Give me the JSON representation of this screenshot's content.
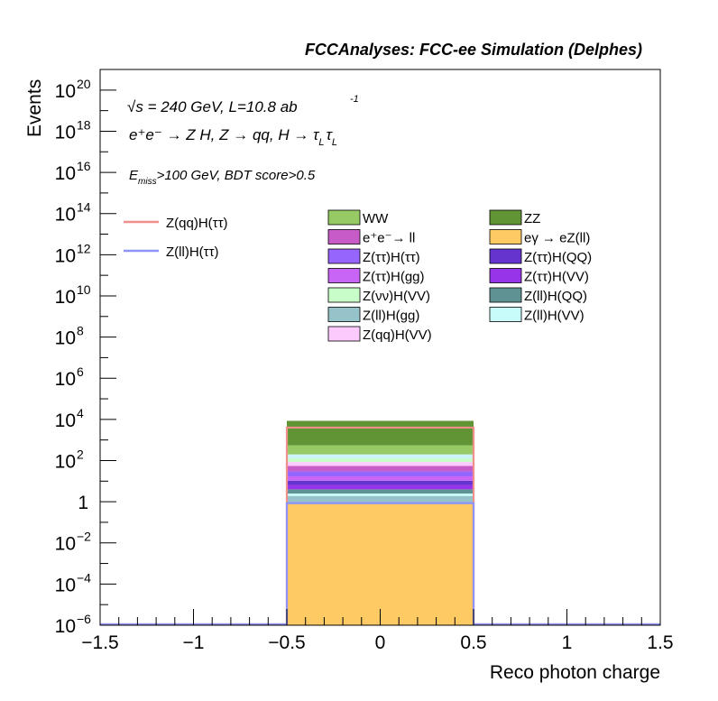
{
  "chart_data": {
    "type": "bar",
    "title": "FCCAnalyses: FCC-ee Simulation (Delphes)",
    "xlabel": "Reco photon charge",
    "ylabel": "Events",
    "xlim": [
      -1.5,
      1.5
    ],
    "ylim": [
      1e-06,
      1e+21
    ],
    "y_log_scale": true,
    "x_ticks": [
      {
        "value": -1.5,
        "label": "−1.5"
      },
      {
        "value": -1,
        "label": "−1"
      },
      {
        "value": -0.5,
        "label": "−0.5"
      },
      {
        "value": 0,
        "label": "0"
      },
      {
        "value": 0.5,
        "label": "0.5"
      },
      {
        "value": 1,
        "label": "1"
      },
      {
        "value": 1.5,
        "label": "1.5"
      }
    ],
    "y_ticks": [
      {
        "exp": -6,
        "base": "10",
        "sup": "−6"
      },
      {
        "exp": -4,
        "base": "10",
        "sup": "−4"
      },
      {
        "exp": -2,
        "base": "10",
        "sup": "−2"
      },
      {
        "exp": 0,
        "base": "1",
        "sup": ""
      },
      {
        "exp": 2,
        "base": "10",
        "sup": "2"
      },
      {
        "exp": 4,
        "base": "10",
        "sup": "4"
      },
      {
        "exp": 6,
        "base": "10",
        "sup": "6"
      },
      {
        "exp": 8,
        "base": "10",
        "sup": "8"
      },
      {
        "exp": 10,
        "base": "10",
        "sup": "10"
      },
      {
        "exp": 12,
        "base": "10",
        "sup": "12"
      },
      {
        "exp": 14,
        "base": "10",
        "sup": "14"
      },
      {
        "exp": 16,
        "base": "10",
        "sup": "16"
      },
      {
        "exp": 18,
        "base": "10",
        "sup": "18"
      },
      {
        "exp": 20,
        "base": "10",
        "sup": "20"
      }
    ],
    "bin": {
      "x_low": -0.5,
      "x_high": 0.5
    },
    "stack": [
      {
        "name": "eγ → eZ(ll)",
        "color": "#fdca63",
        "top": 0.85
      },
      {
        "name": "Z(ll)H(gg)",
        "color": "#96c3c9",
        "top": 1.9
      },
      {
        "name": "Z(ll)H(VV)",
        "color": "#c8fcfa",
        "top": 2.5
      },
      {
        "name": "Z(ll)H(QQ)",
        "color": "#5f9393",
        "top": 4.0
      },
      {
        "name": "Z(ττ)H(VV)",
        "color": "#9734e9",
        "top": 6.5
      },
      {
        "name": "Z(ττ)H(QQ)",
        "color": "#6533cd",
        "top": 10.5
      },
      {
        "name": "Z(ττ)H(gg)",
        "color": "#c865f7",
        "top": 17
      },
      {
        "name": "Z(ττ)H(ττ)",
        "color": "#9665fe",
        "top": 30
      },
      {
        "name": "e⁺e⁻→ ll",
        "color": "#c75cc9",
        "top": 55
      },
      {
        "name": "Z(qq)H(VV)",
        "color": "#fdcafd",
        "top": 85
      },
      {
        "name": "Z(νν)H(VV)",
        "color": "#c8fcc8",
        "top": 130
      },
      {
        "name": "Z(qq)H(ττ)",
        "color": "#cbf3fc",
        "top": 200
      },
      {
        "name": "WW",
        "color": "#97ca65",
        "top": 550
      },
      {
        "name": "ZZ",
        "color": "#619435",
        "top": 8500
      }
    ],
    "signals": [
      {
        "name": "Z(qq)H(ττ)",
        "color": "#f08f8b",
        "value": 4000
      },
      {
        "name": "Z(ll)H(ττ)",
        "color": "#8f93f7",
        "value": 0.85
      }
    ],
    "legend_signals": [
      {
        "label": "Z(qq)H(ττ)",
        "color": "#f08f8b"
      },
      {
        "label": "Z(ll)H(ττ)",
        "color": "#8f93f7"
      }
    ],
    "legend_backgrounds": [
      {
        "label": "WW",
        "color": "#97ca65"
      },
      {
        "label": "ZZ",
        "color": "#619435"
      },
      {
        "label": "e⁺e⁻→ ll",
        "color": "#c75cc9"
      },
      {
        "label": "eγ → eZ(ll)",
        "color": "#fdca63"
      },
      {
        "label": "Z(ττ)H(ττ)",
        "color": "#9665fe"
      },
      {
        "label": "Z(ττ)H(QQ)",
        "color": "#6533cd"
      },
      {
        "label": "Z(ττ)H(gg)",
        "color": "#c865f7"
      },
      {
        "label": "Z(ττ)H(VV)",
        "color": "#9734e9"
      },
      {
        "label": "Z(νν)H(VV)",
        "color": "#c8fcc8"
      },
      {
        "label": "Z(ll)H(QQ)",
        "color": "#5f9393"
      },
      {
        "label": "Z(ll)H(gg)",
        "color": "#96c3c9"
      },
      {
        "label": "Z(ll)H(VV)",
        "color": "#c8fcfa"
      },
      {
        "label": "Z(qq)H(VV)",
        "color": "#fdcafd"
      }
    ],
    "annotations": {
      "sqrt_s_symbol": "√s",
      "energy_lumi": " = 240 GeV, L=10.8 ab",
      "lumi_exponent": "-1",
      "process": "e⁺e⁻ → Z H, Z → qq, H → τ",
      "tau_sub": "L",
      "tau2": "τ",
      "tau2_sub": "L",
      "cut_E": "E",
      "cut_sub": "miss",
      "cut_rest": ">100 GeV, BDT score>0.5"
    },
    "grid": false,
    "legend_position": "top-right"
  }
}
